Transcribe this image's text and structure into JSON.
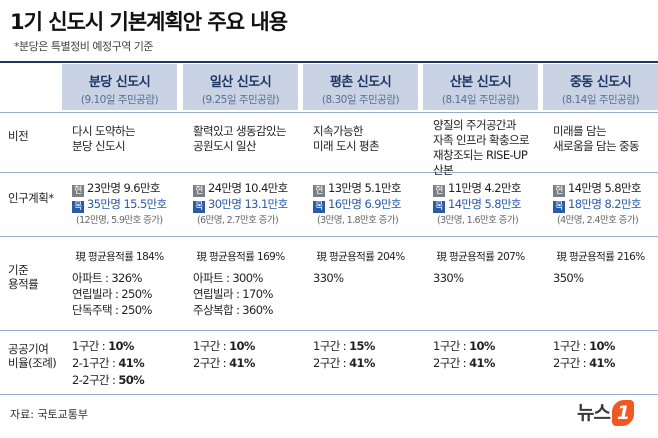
{
  "header": {
    "title": "1기 신도시 기본계획안 주요 내용",
    "subtitle": "*분당은 특별정비 예정구역 기준"
  },
  "table": {
    "columns": [
      {
        "name": "분당 신도시",
        "note": "(9.10일 주민공람)"
      },
      {
        "name": "일산 신도시",
        "note": "(9.25일 주민공람)"
      },
      {
        "name": "평촌 신도시",
        "note": "(8.30일 주민공람)"
      },
      {
        "name": "산본 신도시",
        "note": "(8.14일 주민공람)"
      },
      {
        "name": "중동 신도시",
        "note": "(8.14일 주민공람)"
      }
    ],
    "row_labels": [
      [
        "비전"
      ],
      [
        "인구계획*"
      ],
      [
        "기준",
        "용적률"
      ],
      [
        "공공기여",
        "비율(조례)"
      ]
    ],
    "badges": {
      "current": "현",
      "target": "목"
    },
    "vision": [
      [
        "다시 도약하는",
        "분당 신도시"
      ],
      [
        "활력있고 생동감있는",
        "공원도시 일산"
      ],
      [
        "지속가능한",
        "미래 도시 평촌"
      ],
      [
        "양질의 주거공간과",
        "자족 인프라 확충으로",
        "재창조되는 RISE-UP 산본"
      ],
      [
        "미래를 담는",
        "새로움을 담는 중동"
      ]
    ],
    "population": [
      {
        "current": "23만명 9.6만호",
        "target": "35만명 15.5만호",
        "change": "(12만명, 5.9만호 증가)"
      },
      {
        "current": "24만명 10.4만호",
        "target": "30만명 13.1만호",
        "change": "(6만명, 2.7만호 증가)"
      },
      {
        "current": "13만명 5.1만호",
        "target": "16만명 6.9만호",
        "change": "(3만명, 1.8만호 증가)"
      },
      {
        "current": "11만명 4.2만호",
        "target": "14만명 5.8만호",
        "change": "(3만명, 1.6만호 증가)"
      },
      {
        "current": "14만명 5.8만호",
        "target": "18만명 8.2만호",
        "change": "(4만명, 2.4만호 증가)"
      }
    ],
    "far": [
      {
        "current": "現 평균용적률 184%",
        "details": [
          "아파트 : 326%",
          "연립빌라 : 250%",
          "단독주택 : 250%"
        ]
      },
      {
        "current": "現 평균용적률 169%",
        "details": [
          "아파트 : 300%",
          "연립빌라 : 170%",
          "주상복합 : 360%"
        ]
      },
      {
        "current": "現 평균용적률 204%",
        "details": [
          "330%"
        ]
      },
      {
        "current": "現 평균용적률 207%",
        "details": [
          "330%"
        ]
      },
      {
        "current": "現 평균용적률 216%",
        "details": [
          "350%"
        ]
      }
    ],
    "contribution": [
      [
        {
          "label": "1구간 : ",
          "value": "10%"
        },
        {
          "label": "2-1구간 : ",
          "value": "41%"
        },
        {
          "label": "2-2구간 : ",
          "value": "50%"
        }
      ],
      [
        {
          "label": "1구간 : ",
          "value": "10%"
        },
        {
          "label": "2구간 : ",
          "value": "41%"
        }
      ],
      [
        {
          "label": "1구간 : ",
          "value": "15%"
        },
        {
          "label": "2구간 : ",
          "value": "41%"
        }
      ],
      [
        {
          "label": "1구간 : ",
          "value": "10%"
        },
        {
          "label": "2구간 : ",
          "value": "41%"
        }
      ],
      [
        {
          "label": "1구간 : ",
          "value": "10%"
        },
        {
          "label": "2구간 : ",
          "value": "41%"
        }
      ]
    ]
  },
  "footer": {
    "source": "자료: 국토교통부",
    "logo_text": "뉴스",
    "logo_mark": "1"
  }
}
